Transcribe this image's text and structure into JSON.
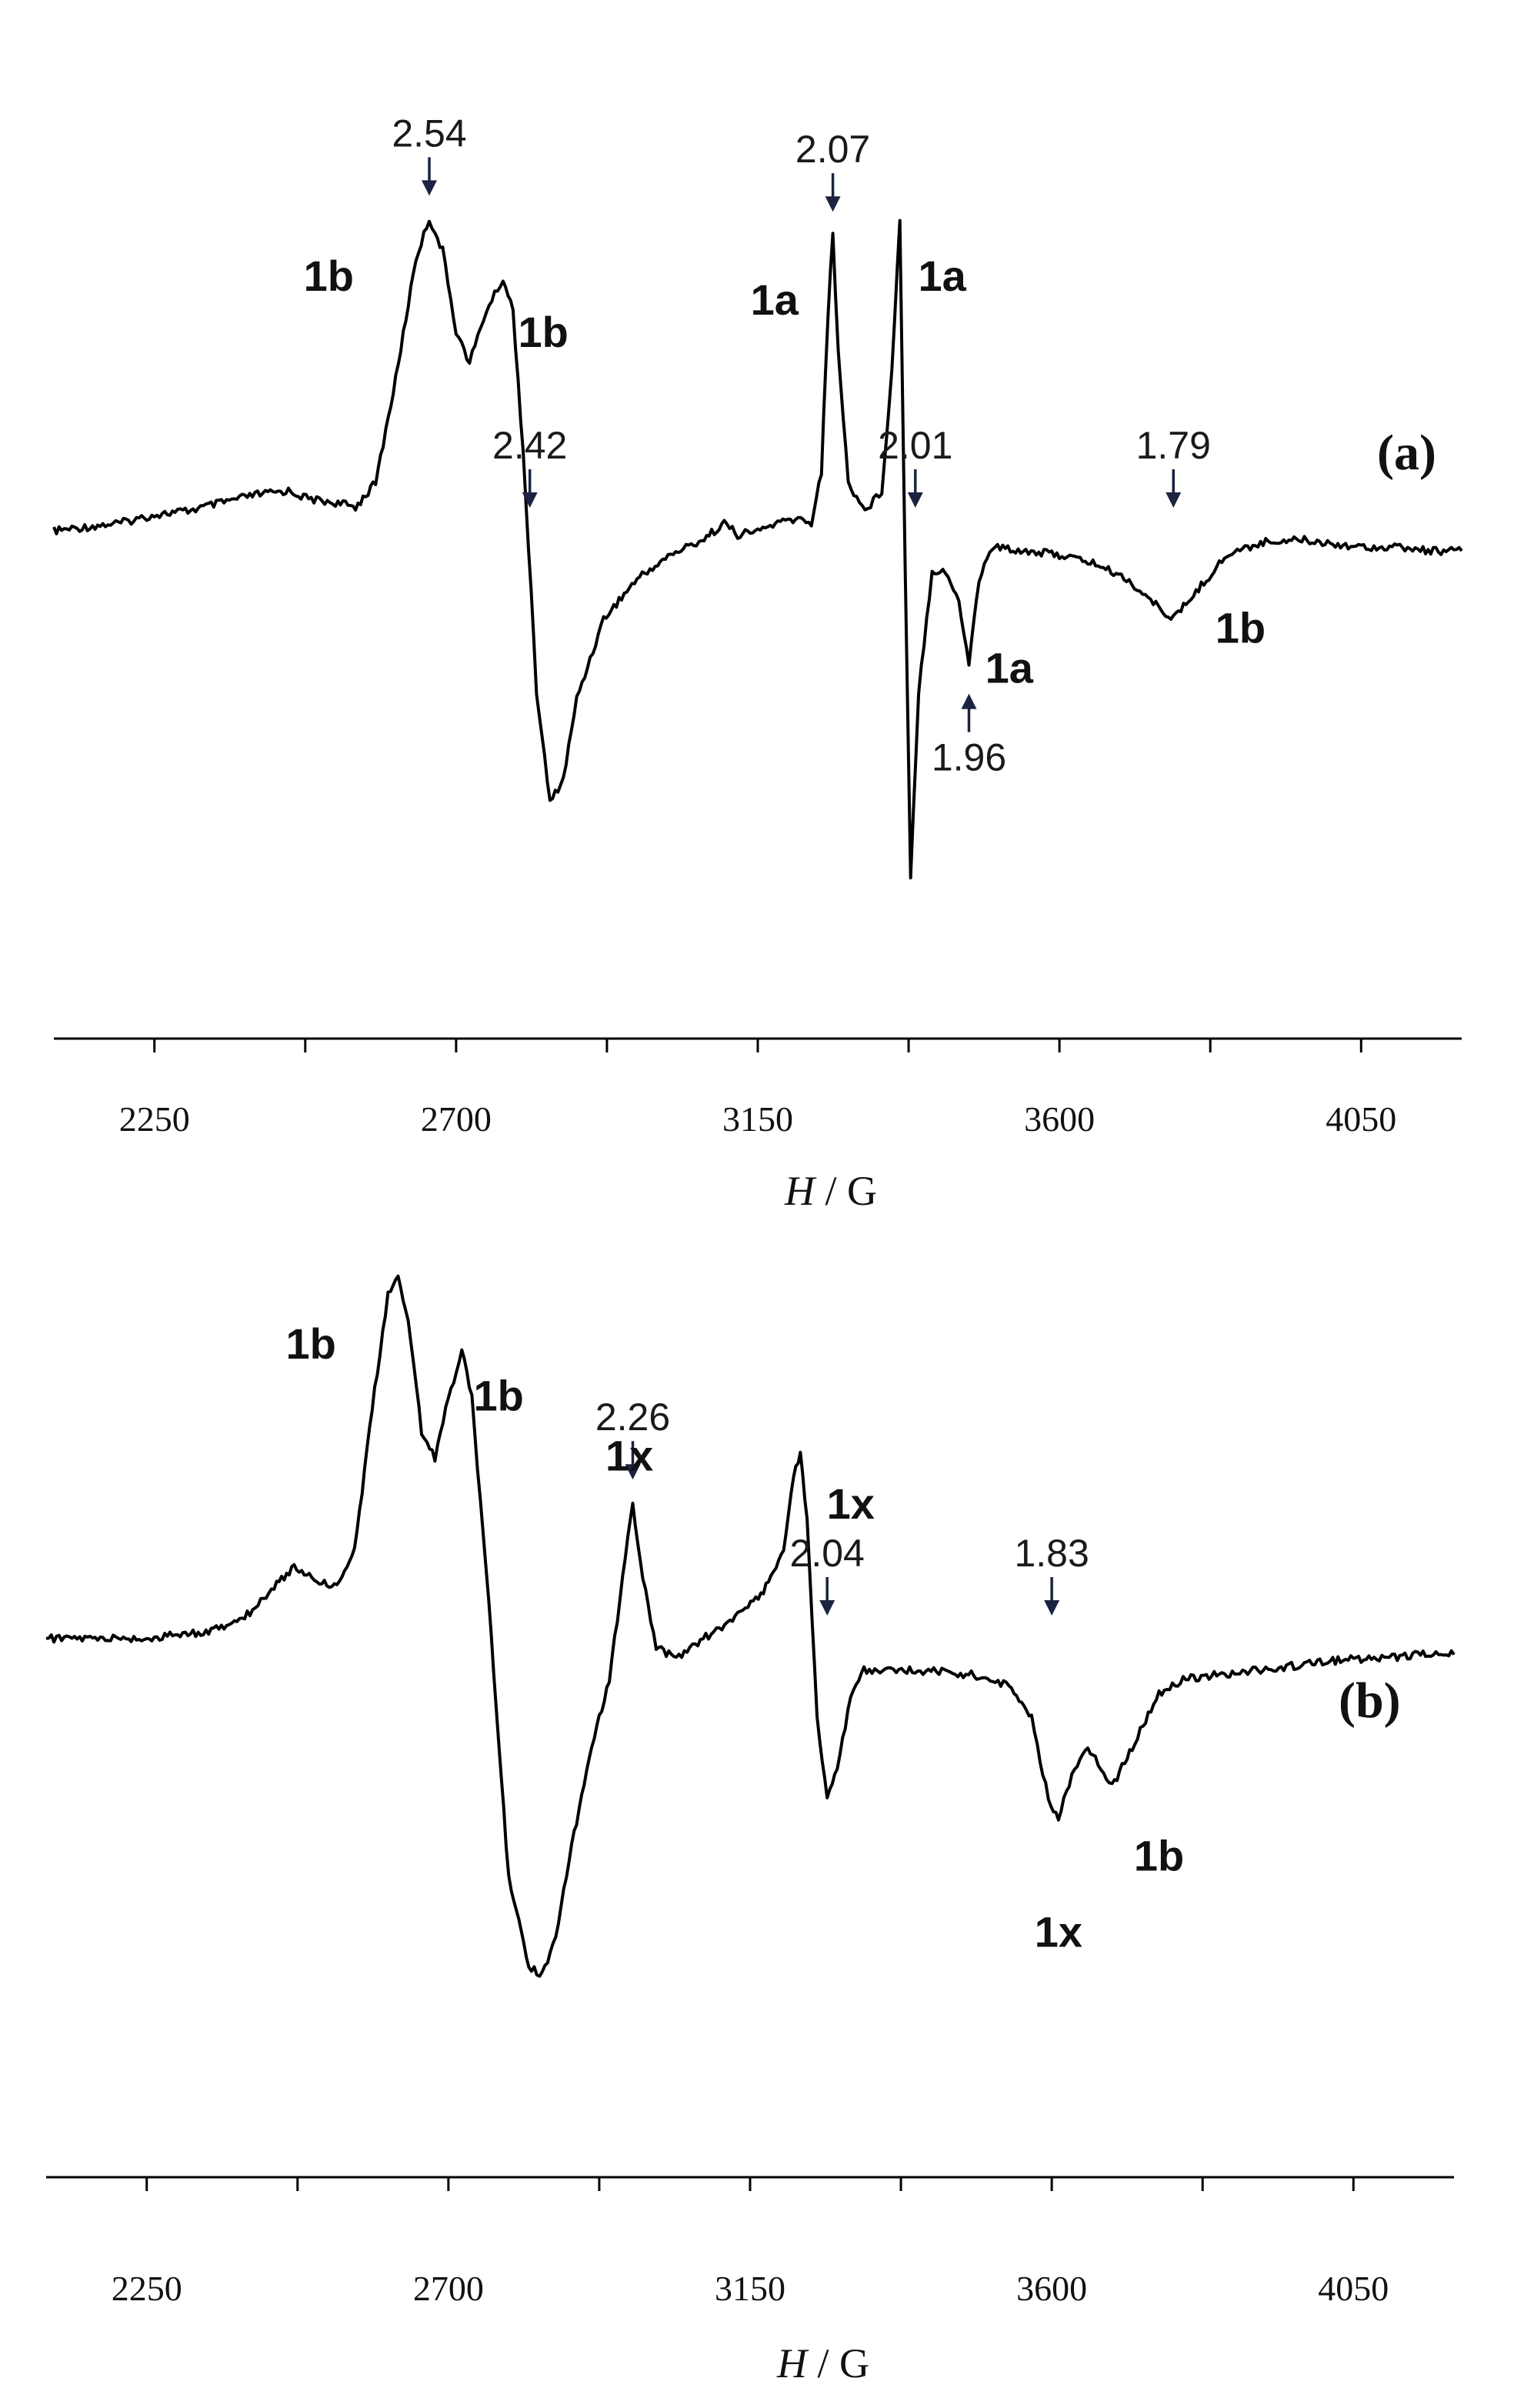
{
  "chart_data": [
    {
      "type": "line",
      "panel_label": "(a)",
      "xlabel_italic": "H",
      "xlabel_rest": " / G",
      "ylabel": "",
      "xlim": [
        2100,
        4200
      ],
      "xticks": [
        2250,
        2700,
        3150,
        3600,
        4050
      ],
      "grid": false,
      "series": [
        {
          "points": [
            [
              2100,
              0.0
            ],
            [
              2150,
              0.01
            ],
            [
              2200,
              0.02
            ],
            [
              2250,
              0.04
            ],
            [
              2300,
              0.05
            ],
            [
              2350,
              0.07
            ],
            [
              2400,
              0.09
            ],
            [
              2450,
              0.1
            ],
            [
              2480,
              0.08
            ],
            [
              2520,
              0.07
            ],
            [
              2550,
              0.06
            ],
            [
              2580,
              0.12
            ],
            [
              2610,
              0.38
            ],
            [
              2640,
              0.68
            ],
            [
              2660,
              0.78
            ],
            [
              2680,
              0.7
            ],
            [
              2700,
              0.5
            ],
            [
              2720,
              0.42
            ],
            [
              2745,
              0.55
            ],
            [
              2770,
              0.63
            ],
            [
              2785,
              0.55
            ],
            [
              2800,
              0.2
            ],
            [
              2820,
              -0.4
            ],
            [
              2840,
              -0.68
            ],
            [
              2860,
              -0.62
            ],
            [
              2880,
              -0.42
            ],
            [
              2920,
              -0.22
            ],
            [
              2970,
              -0.12
            ],
            [
              3020,
              -0.06
            ],
            [
              3070,
              -0.02
            ],
            [
              3100,
              0.02
            ],
            [
              3120,
              -0.01
            ],
            [
              3150,
              0.0
            ],
            [
              3180,
              0.02
            ],
            [
              3210,
              0.03
            ],
            [
              3230,
              0.02
            ],
            [
              3245,
              0.15
            ],
            [
              3255,
              0.55
            ],
            [
              3262,
              0.74
            ],
            [
              3270,
              0.45
            ],
            [
              3285,
              0.12
            ],
            [
              3310,
              0.05
            ],
            [
              3335,
              0.1
            ],
            [
              3350,
              0.4
            ],
            [
              3362,
              0.78
            ],
            [
              3370,
              -0.1
            ],
            [
              3378,
              -0.86
            ],
            [
              3390,
              -0.4
            ],
            [
              3410,
              -0.1
            ],
            [
              3430,
              -0.1
            ],
            [
              3450,
              -0.18
            ],
            [
              3465,
              -0.33
            ],
            [
              3480,
              -0.12
            ],
            [
              3500,
              -0.04
            ],
            [
              3550,
              -0.05
            ],
            [
              3600,
              -0.06
            ],
            [
              3650,
              -0.08
            ],
            [
              3700,
              -0.12
            ],
            [
              3740,
              -0.18
            ],
            [
              3770,
              -0.22
            ],
            [
              3800,
              -0.16
            ],
            [
              3850,
              -0.06
            ],
            [
              3900,
              -0.03
            ],
            [
              3950,
              -0.02
            ],
            [
              4000,
              -0.03
            ],
            [
              4050,
              -0.04
            ],
            [
              4100,
              -0.04
            ],
            [
              4150,
              -0.05
            ],
            [
              4200,
              -0.05
            ]
          ]
        }
      ],
      "g_markers": [
        {
          "text": "2.54",
          "x": 2660,
          "arrow": "down"
        },
        {
          "text": "2.42",
          "x": 2810,
          "arrow": "down"
        },
        {
          "text": "2.07",
          "x": 3262,
          "arrow": "down"
        },
        {
          "text": "2.01",
          "x": 3385,
          "arrow": "down"
        },
        {
          "text": "1.79",
          "x": 3770,
          "arrow": "down"
        },
        {
          "text": "1.96",
          "x": 3465,
          "arrow": "up"
        }
      ],
      "annotations": [
        {
          "text": "1b",
          "x": 2510,
          "y": 0.6
        },
        {
          "text": "1b",
          "x": 2830,
          "y": 0.46
        },
        {
          "text": "1a",
          "x": 3175,
          "y": 0.54
        },
        {
          "text": "1a",
          "x": 3425,
          "y": 0.6
        },
        {
          "text": "1a",
          "x": 3525,
          "y": -0.38
        },
        {
          "text": "1b",
          "x": 3870,
          "y": -0.28
        }
      ]
    },
    {
      "type": "line",
      "panel_label": "(b)",
      "xlabel_italic": "H",
      "xlabel_rest": " / G",
      "ylabel": "",
      "xlim": [
        2100,
        4200
      ],
      "xticks": [
        2250,
        2700,
        3150,
        3600,
        4050
      ],
      "grid": false,
      "series": [
        {
          "points": [
            [
              2100,
              0.0
            ],
            [
              2150,
              0.0
            ],
            [
              2200,
              0.0
            ],
            [
              2250,
              0.0
            ],
            [
              2300,
              0.01
            ],
            [
              2350,
              0.02
            ],
            [
              2400,
              0.06
            ],
            [
              2440,
              0.13
            ],
            [
              2470,
              0.18
            ],
            [
              2500,
              0.15
            ],
            [
              2530,
              0.13
            ],
            [
              2560,
              0.22
            ],
            [
              2590,
              0.62
            ],
            [
              2610,
              0.86
            ],
            [
              2625,
              0.9
            ],
            [
              2640,
              0.8
            ],
            [
              2660,
              0.52
            ],
            [
              2680,
              0.45
            ],
            [
              2700,
              0.6
            ],
            [
              2720,
              0.72
            ],
            [
              2735,
              0.6
            ],
            [
              2760,
              0.1
            ],
            [
              2790,
              -0.6
            ],
            [
              2820,
              -0.82
            ],
            [
              2840,
              -0.84
            ],
            [
              2860,
              -0.75
            ],
            [
              2880,
              -0.55
            ],
            [
              2910,
              -0.3
            ],
            [
              2940,
              -0.1
            ],
            [
              2960,
              0.15
            ],
            [
              2975,
              0.34
            ],
            [
              2990,
              0.15
            ],
            [
              3010,
              -0.02
            ],
            [
              3040,
              -0.05
            ],
            [
              3080,
              0.0
            ],
            [
              3120,
              0.04
            ],
            [
              3170,
              0.12
            ],
            [
              3200,
              0.22
            ],
            [
              3215,
              0.4
            ],
            [
              3225,
              0.47
            ],
            [
              3235,
              0.3
            ],
            [
              3250,
              -0.2
            ],
            [
              3265,
              -0.4
            ],
            [
              3280,
              -0.32
            ],
            [
              3300,
              -0.15
            ],
            [
              3320,
              -0.08
            ],
            [
              3360,
              -0.08
            ],
            [
              3420,
              -0.08
            ],
            [
              3480,
              -0.09
            ],
            [
              3540,
              -0.12
            ],
            [
              3570,
              -0.2
            ],
            [
              3595,
              -0.4
            ],
            [
              3610,
              -0.45
            ],
            [
              3630,
              -0.34
            ],
            [
              3650,
              -0.27
            ],
            [
              3665,
              -0.3
            ],
            [
              3690,
              -0.37
            ],
            [
              3720,
              -0.27
            ],
            [
              3760,
              -0.14
            ],
            [
              3800,
              -0.1
            ],
            [
              3850,
              -0.09
            ],
            [
              3900,
              -0.08
            ],
            [
              3950,
              -0.07
            ],
            [
              4000,
              -0.06
            ],
            [
              4050,
              -0.05
            ],
            [
              4100,
              -0.05
            ],
            [
              4150,
              -0.04
            ],
            [
              4200,
              -0.04
            ]
          ]
        }
      ],
      "g_markers": [
        {
          "text": "2.26",
          "x": 2975,
          "arrow": "down"
        },
        {
          "text": "2.04",
          "x": 3265,
          "arrow": "down"
        },
        {
          "text": "1.83",
          "x": 3600,
          "arrow": "down"
        }
      ],
      "annotations": [
        {
          "text": "1b",
          "x": 2495,
          "y": 0.7
        },
        {
          "text": "1b",
          "x": 2775,
          "y": 0.57
        },
        {
          "text": "1x",
          "x": 2970,
          "y": 0.42
        },
        {
          "text": "1x",
          "x": 3300,
          "y": 0.3
        },
        {
          "text": "1x",
          "x": 3610,
          "y": -0.77
        },
        {
          "text": "1b",
          "x": 3760,
          "y": -0.58
        }
      ]
    }
  ]
}
